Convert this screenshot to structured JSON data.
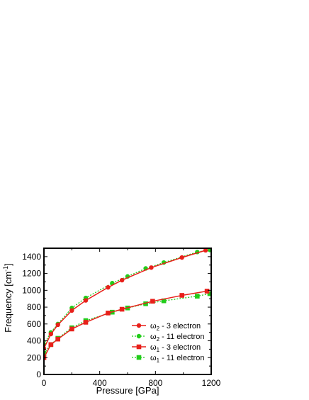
{
  "chart_data": {
    "type": "line",
    "xlabel": "Pressure [GPa]",
    "ylabel": "Frequency [cm",
    "ylabel_sup": "-1",
    "ylabel_end": "]",
    "xlim": [
      0,
      1200
    ],
    "ylim": [
      0,
      1500
    ],
    "xticks": [
      0,
      400,
      800,
      1200
    ],
    "yticks": [
      0,
      200,
      400,
      600,
      800,
      1000,
      1200,
      1400
    ],
    "xtick_labels": [
      "0",
      "400",
      "800",
      "1200"
    ],
    "ytick_labels": [
      "0",
      "200",
      "400",
      "600",
      "800",
      "1000",
      "1200",
      "1400"
    ],
    "grid": false,
    "legend_position": "lower-right",
    "series": [
      {
        "name": "ω2 - 3 electron",
        "symbol": "ω",
        "subscript": "2",
        "suffix": " - 3 electron",
        "marker": "circle",
        "line": "solid",
        "color": "#e8201a",
        "x": [
          0,
          50,
          100,
          200,
          300,
          460,
          560,
          770,
          990,
          1160
        ],
        "y": [
          310,
          480,
          590,
          760,
          880,
          1035,
          1120,
          1270,
          1390,
          1475
        ]
      },
      {
        "name": "ω2 - 11 electron",
        "symbol": "ω",
        "subscript": "2",
        "suffix": " - 11 electron",
        "marker": "circle",
        "line": "dotted",
        "color": "#22cc1a",
        "x": [
          0,
          50,
          100,
          200,
          300,
          490,
          600,
          730,
          860,
          1100,
          1190
        ],
        "y": [
          360,
          500,
          600,
          790,
          910,
          1085,
          1165,
          1260,
          1330,
          1455,
          1480
        ]
      },
      {
        "name": "ω1 - 3 electron",
        "symbol": "ω",
        "subscript": "1",
        "suffix": " - 3 electron",
        "marker": "square",
        "line": "solid",
        "color": "#e8201a",
        "x": [
          0,
          50,
          100,
          200,
          300,
          460,
          560,
          780,
          990,
          1170
        ],
        "y": [
          200,
          355,
          420,
          540,
          620,
          730,
          775,
          870,
          940,
          990
        ]
      },
      {
        "name": "ω1 - 11 electron",
        "symbol": "ω",
        "subscript": "1",
        "suffix": " - 11 electron",
        "marker": "square",
        "line": "dotted",
        "color": "#22cc1a",
        "x": [
          0,
          50,
          100,
          200,
          300,
          490,
          600,
          730,
          860,
          1100,
          1190
        ],
        "y": [
          250,
          355,
          430,
          555,
          640,
          740,
          790,
          840,
          875,
          930,
          960
        ]
      }
    ]
  }
}
